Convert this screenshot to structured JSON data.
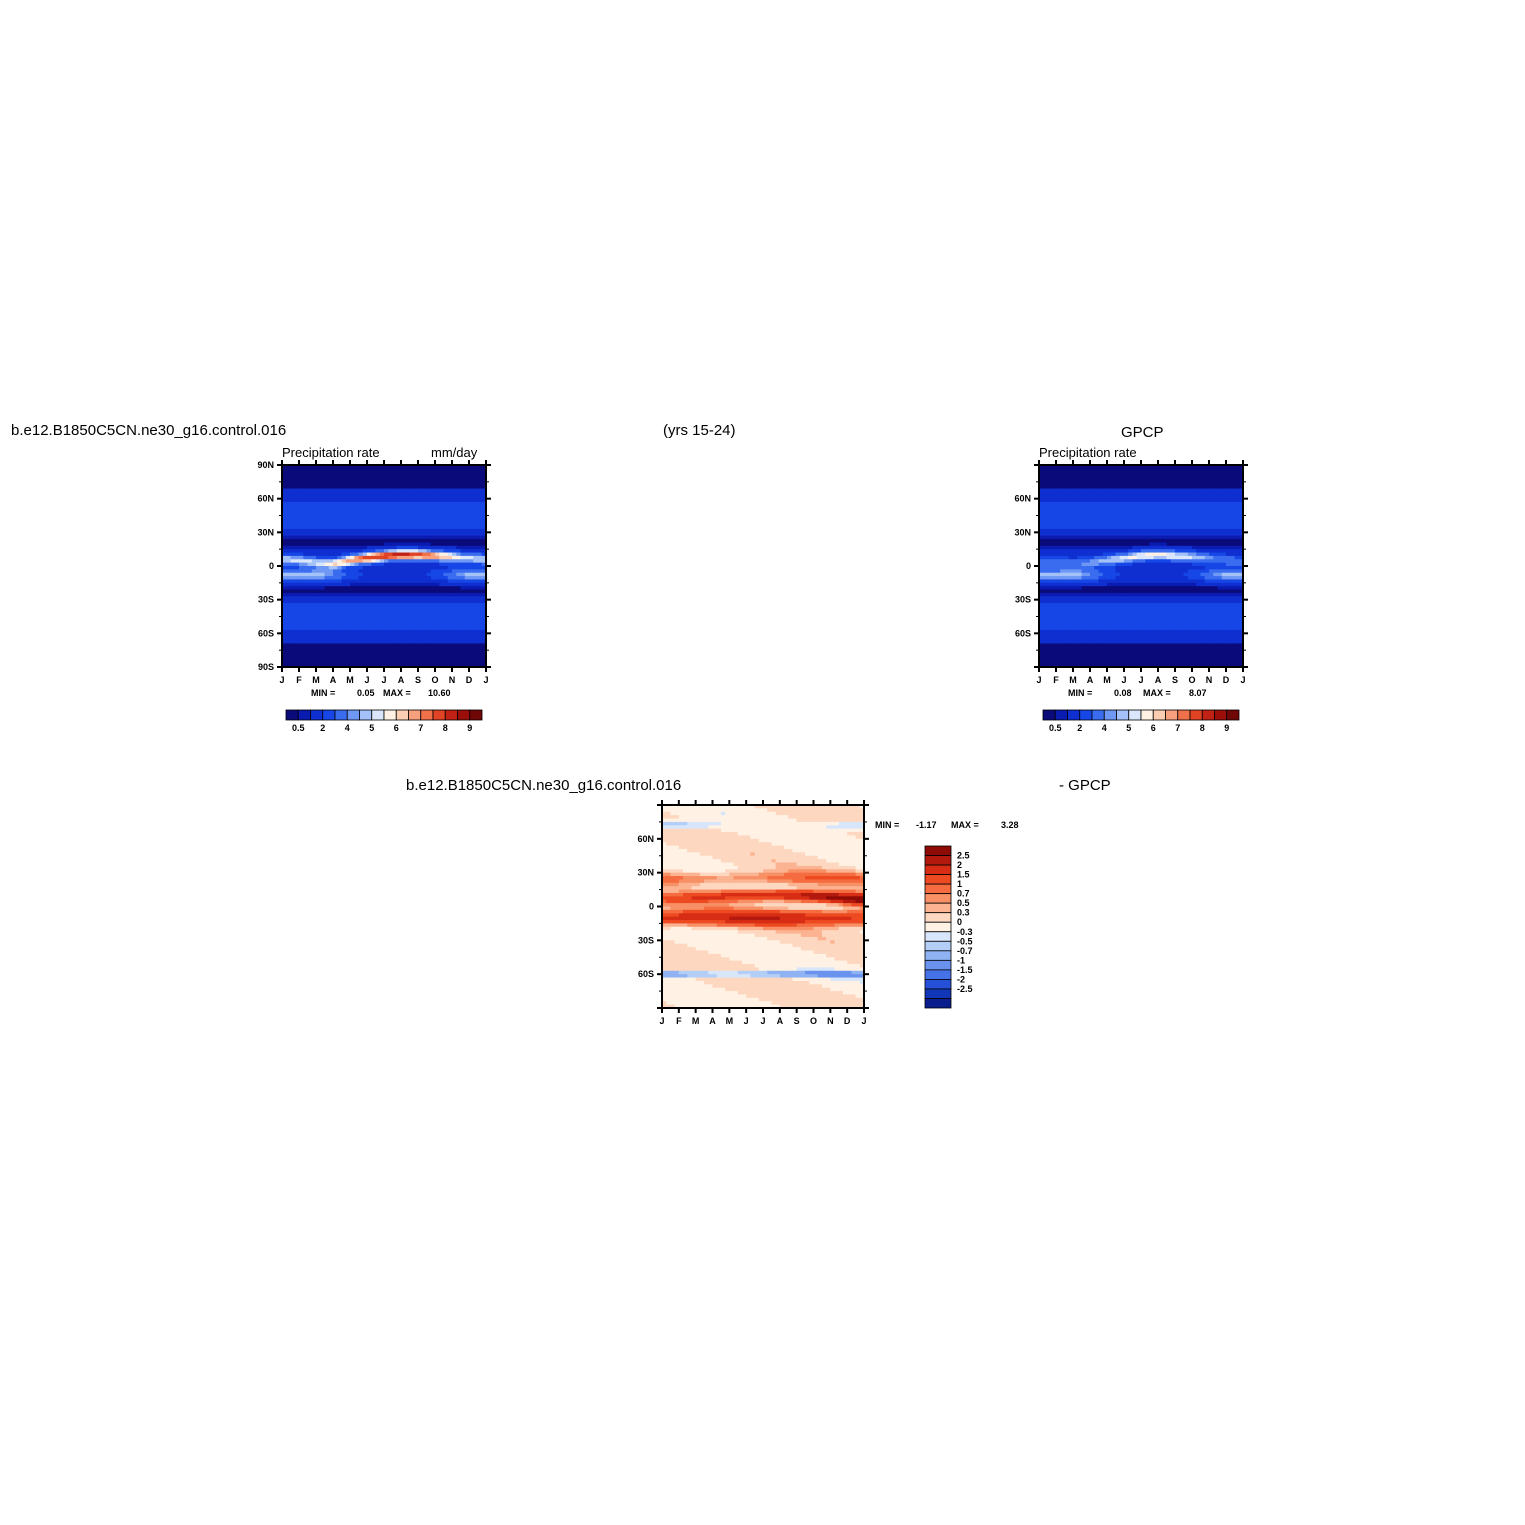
{
  "header": {
    "case_name": "b.e12.B1850C5CN.ne30_g16.control.016",
    "years": "(yrs 15-24)",
    "obs_name": "GPCP"
  },
  "diff_header": {
    "case_name": "b.e12.B1850C5CN.ne30_g16.control.016",
    "minus_obs": "- GPCP"
  },
  "palettes": {
    "precip": [
      "#0a0a7a",
      "#0a1bb0",
      "#0f2fd0",
      "#1646e6",
      "#3a6cf0",
      "#6f98f4",
      "#a4c2f8",
      "#d9e6fb",
      "#fff2e4",
      "#fbcdb2",
      "#f7a07d",
      "#f0704a",
      "#e04425",
      "#c22215",
      "#9c0e0a",
      "#700606"
    ],
    "diff": [
      "#8e0b06",
      "#b4190e",
      "#d82d15",
      "#ee4a22",
      "#f56c40",
      "#f89066",
      "#fbb391",
      "#fdd7bf",
      "#fff2e4",
      "#d8e6fb",
      "#b4cff7",
      "#8fb2f3",
      "#6a92ef",
      "#4672e8",
      "#2650d8",
      "#1236b8",
      "#0a1d8c"
    ]
  },
  "chart_data": [
    {
      "type": "heatmap",
      "panel": "model",
      "title": "Precipitation rate",
      "units": "mm/day",
      "x_ticks": [
        "J",
        "F",
        "M",
        "A",
        "M",
        "J",
        "J",
        "A",
        "S",
        "O",
        "N",
        "D",
        "J"
      ],
      "y_ticks": [
        "90N",
        "60N",
        "30N",
        "0",
        "30S",
        "60S",
        "90S"
      ],
      "ylim": [
        -90,
        90
      ],
      "min_label": "MIN =",
      "min_value": "0.05",
      "max_label": "MAX =",
      "max_value": "10.60",
      "colorbar_labels": [
        "0.5",
        "2",
        "4",
        "5",
        "6",
        "7",
        "8",
        "9"
      ],
      "itcz_peak": 10.6,
      "itcz_lat": [
        6,
        5,
        3,
        2,
        5,
        7,
        9,
        10,
        10,
        9,
        8,
        7,
        6
      ]
    },
    {
      "type": "heatmap",
      "panel": "obs",
      "title": "Precipitation rate",
      "x_ticks": [
        "J",
        "F",
        "M",
        "A",
        "M",
        "J",
        "J",
        "A",
        "S",
        "O",
        "N",
        "D",
        "J"
      ],
      "y_ticks": [
        "60N",
        "30N",
        "0",
        "30S",
        "60S"
      ],
      "ylim": [
        -90,
        90
      ],
      "min_label": "MIN =",
      "min_value": "0.08",
      "max_label": "MAX =",
      "max_value": "8.07",
      "colorbar_labels": [
        "0.5",
        "2",
        "4",
        "5",
        "6",
        "7",
        "8",
        "9"
      ],
      "itcz_peak": 8.07,
      "itcz_lat": [
        4,
        3,
        2,
        3,
        5,
        7,
        9,
        10,
        9,
        8,
        7,
        5,
        4
      ]
    },
    {
      "type": "heatmap",
      "panel": "difference",
      "x_ticks": [
        "J",
        "F",
        "M",
        "A",
        "M",
        "J",
        "J",
        "A",
        "S",
        "O",
        "N",
        "D",
        "J"
      ],
      "y_ticks": [
        "60N",
        "30N",
        "0",
        "30S",
        "60S"
      ],
      "ylim": [
        -90,
        90
      ],
      "min_label": "MIN =",
      "min_value": "-1.17",
      "max_label": "MAX =",
      "max_value": "3.28",
      "colorbar_labels": [
        "2.5",
        "2",
        "1.5",
        "1",
        "0.7",
        "0.5",
        "0.3",
        "0",
        "-0.3",
        "-0.5",
        "-0.7",
        "-1",
        "-1.5",
        "-2",
        "-2.5"
      ]
    }
  ]
}
